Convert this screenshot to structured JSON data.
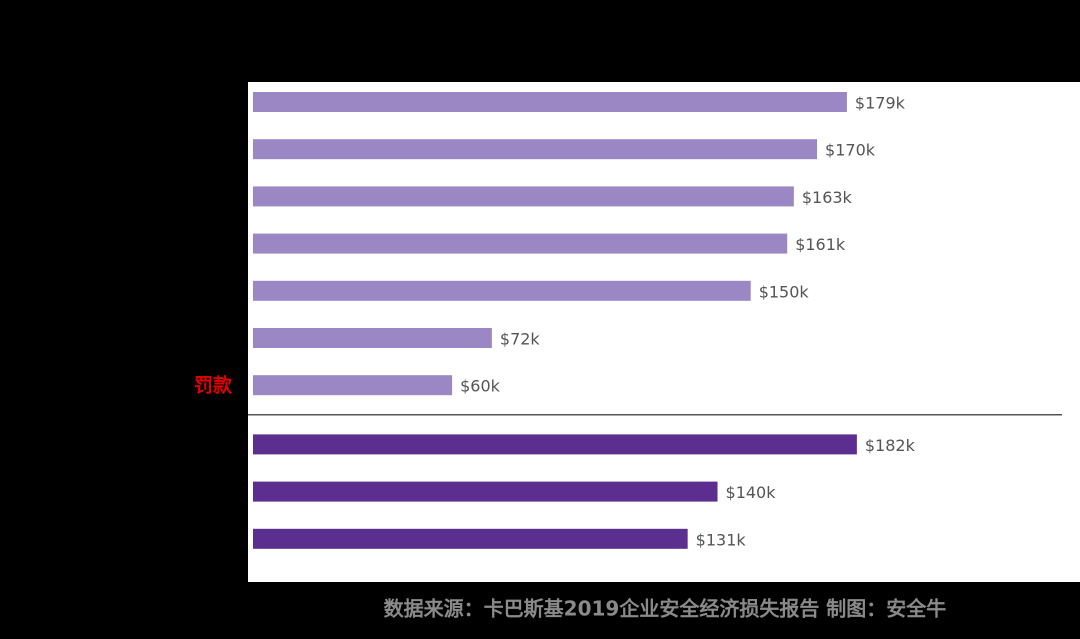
{
  "chart_data": {
    "type": "barh",
    "categories": [
      null,
      null,
      null,
      null,
      null,
      null,
      "罚款",
      null,
      null,
      null
    ],
    "values": [
      179,
      170,
      163,
      161,
      150,
      72,
      60,
      182,
      140,
      131
    ],
    "value_labels": [
      "$179k",
      "$170k",
      "$163k",
      "$161k",
      "$150k",
      "$72k",
      "$60k",
      "$182k",
      "$140k",
      "$131k"
    ],
    "colors": [
      "#9b87c4",
      "#9b87c4",
      "#9b87c4",
      "#9b87c4",
      "#9b87c4",
      "#9b87c4",
      "#9b87c4",
      "#5b2e8f",
      "#5b2e8f",
      "#5b2e8f"
    ],
    "source": "数据来源：卡巴斯基2019企业安全经济损失报告  制图：安全牛"
  }
}
